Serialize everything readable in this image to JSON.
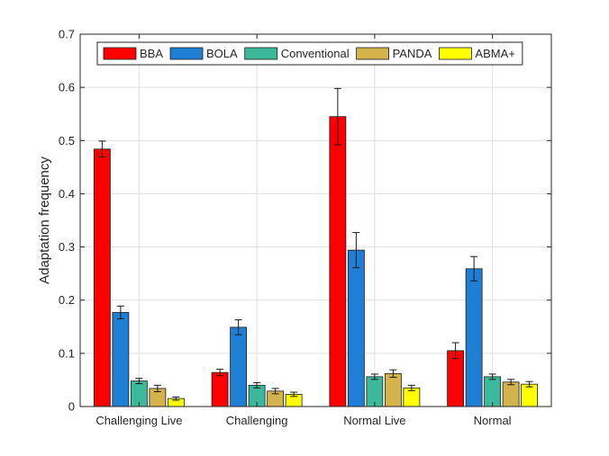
{
  "chart_data": {
    "type": "bar",
    "title": "",
    "xlabel": "",
    "ylabel": "Adaptation frequency",
    "ylim": [
      0,
      0.7
    ],
    "yticks": [
      "0",
      "0.1",
      "0.2",
      "0.3",
      "0.4",
      "0.5",
      "0.6",
      "0.7"
    ],
    "grid": true,
    "legend_position": "top",
    "legend_orientation": "horizontal",
    "categories": [
      "Challenging Live",
      "Challenging",
      "Normal Live",
      "Normal"
    ],
    "series": [
      {
        "name": "BBA",
        "color": "#ff0000",
        "values": [
          0.484,
          0.064,
          0.545,
          0.105
        ],
        "errors": [
          0.015,
          0.006,
          0.053,
          0.015
        ]
      },
      {
        "name": "BOLA",
        "color": "#1f7fd4",
        "values": [
          0.177,
          0.149,
          0.294,
          0.259
        ],
        "errors": [
          0.012,
          0.014,
          0.033,
          0.023
        ]
      },
      {
        "name": "Conventional",
        "color": "#3cb89a",
        "values": [
          0.048,
          0.04,
          0.056,
          0.056
        ],
        "errors": [
          0.005,
          0.005,
          0.005,
          0.005
        ]
      },
      {
        "name": "PANDA",
        "color": "#d4b24c",
        "values": [
          0.034,
          0.029,
          0.062,
          0.046
        ],
        "errors": [
          0.006,
          0.005,
          0.007,
          0.005
        ]
      },
      {
        "name": "ABMA+",
        "color": "#ffff00",
        "values": [
          0.015,
          0.023,
          0.035,
          0.042
        ],
        "errors": [
          0.003,
          0.004,
          0.005,
          0.005
        ]
      }
    ]
  }
}
